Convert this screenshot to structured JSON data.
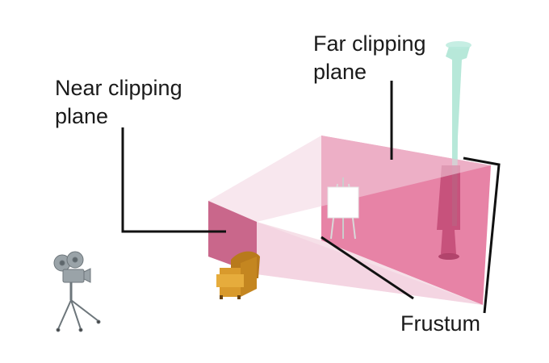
{
  "labels": {
    "near_line1": "Near clipping",
    "near_line2": "plane",
    "far_line1": "Far clipping",
    "far_line2": "plane",
    "frustum": "Frustum"
  },
  "colors": {
    "far_plane": "#e5789e",
    "near_plane": "#c45c82",
    "frustum_top": "#f3d3e0",
    "frustum_bottom": "#efc6d6",
    "pillar": "#8fd8c4",
    "leader_lines": "#111111",
    "chair": "#c88a22"
  },
  "icons": {
    "camera": "movie-camera-icon",
    "chair": "armchair-icon",
    "easel": "easel-icon",
    "pillar": "column-icon"
  }
}
